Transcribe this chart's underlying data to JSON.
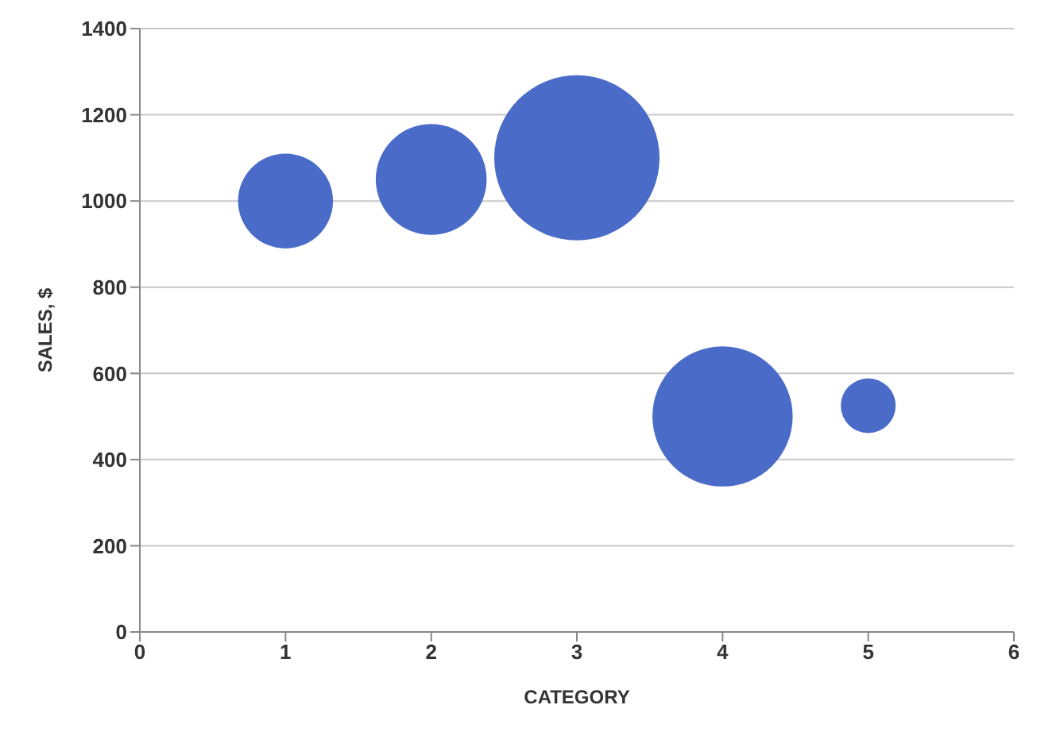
{
  "chart_data": {
    "type": "bubble",
    "xlabel": "CATEGORY",
    "ylabel": "SALES, $",
    "x": [
      1,
      2,
      3,
      4,
      5
    ],
    "series": [
      {
        "color": "#4a6cc8",
        "values": [
          1000,
          1050,
          1100,
          500,
          525
        ],
        "sizes": [
          0.33,
          0.45,
          1,
          0.72,
          0.11
        ]
      }
    ],
    "xlim": [
      0,
      6
    ],
    "xticks": [
      0,
      1,
      2,
      3,
      4,
      5,
      6
    ],
    "ylim": [
      0,
      1400
    ],
    "yticks": [
      0,
      200,
      400,
      600,
      800,
      1000,
      1200,
      1400
    ],
    "grid": "y"
  }
}
